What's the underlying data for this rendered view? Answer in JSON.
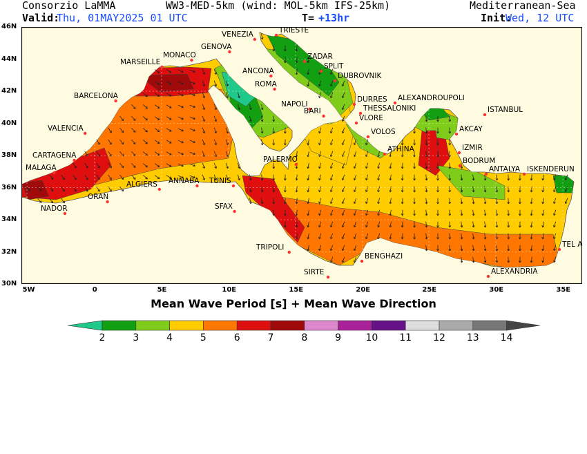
{
  "header": {
    "org": "Consorzio LaMMA",
    "model": "WW3-MED-5km (wind: MOL-5km IFS-25km)",
    "domain": "Mediterranean-Sea",
    "valid_label": "Valid:",
    "valid_value": "Thu, 01MAY2025  01 UTC",
    "lead_label": "T=",
    "lead_value": "+13hr",
    "init_label": "Init:",
    "init_value": "Wed, 12 UTC"
  },
  "axes": {
    "lat_ticks": [
      "46N",
      "44N",
      "42N",
      "40N",
      "38N",
      "36N",
      "34N",
      "32N",
      "30N"
    ],
    "lon_ticks": [
      "5W",
      "0",
      "5E",
      "10E",
      "15E",
      "20E",
      "25E",
      "30E",
      "35E"
    ]
  },
  "map_title": "Mean Wave Period [s] + Mean Wave Direction",
  "colorbar": {
    "labels": [
      "2",
      "3",
      "4",
      "5",
      "6",
      "7",
      "8",
      "9",
      "10",
      "11",
      "12",
      "13",
      "14"
    ],
    "colors": [
      "#1fc98a",
      "#12a012",
      "#80cc1a",
      "#ffcc00",
      "#ff7700",
      "#e00f0f",
      "#a00a0a",
      "#dd88cc",
      "#aa2299",
      "#661188",
      "#dddddd",
      "#aaaaaa",
      "#777777",
      "#444444"
    ]
  },
  "cities": [
    {
      "name": "VENEZIA"
    },
    {
      "name": "TRIESTE"
    },
    {
      "name": "GENOVA"
    },
    {
      "name": "MONACO"
    },
    {
      "name": "MARSEILLE"
    },
    {
      "name": "ZADAR"
    },
    {
      "name": "SPLIT"
    },
    {
      "name": "ANCONA"
    },
    {
      "name": "DUBROVNIK"
    },
    {
      "name": "ROMA"
    },
    {
      "name": "BARCELONA"
    },
    {
      "name": "DURRES"
    },
    {
      "name": "ALEXANDROUPOLI"
    },
    {
      "name": "NAPOLI"
    },
    {
      "name": "THESSALONIKI"
    },
    {
      "name": "BARI"
    },
    {
      "name": "ISTANBUL"
    },
    {
      "name": "VALENCIA"
    },
    {
      "name": "VLORE"
    },
    {
      "name": "VOLOS"
    },
    {
      "name": "AKCAY"
    },
    {
      "name": "IZMIR"
    },
    {
      "name": "ATHINA"
    },
    {
      "name": "CARTAGENA"
    },
    {
      "name": "PALERMO"
    },
    {
      "name": "BODRUM"
    },
    {
      "name": "MALAGA"
    },
    {
      "name": "ANTALYA"
    },
    {
      "name": "ISKENDERUN"
    },
    {
      "name": "ALGIERS"
    },
    {
      "name": "ANNABA"
    },
    {
      "name": "TUNIS"
    },
    {
      "name": "ORAN"
    },
    {
      "name": "NADOR"
    },
    {
      "name": "SFAX"
    },
    {
      "name": "TRIPOLI"
    },
    {
      "name": "BENGHAZI"
    },
    {
      "name": "TEL AVIV"
    },
    {
      "name": "SIRTE"
    },
    {
      "name": "ALEXANDRIA"
    }
  ]
}
